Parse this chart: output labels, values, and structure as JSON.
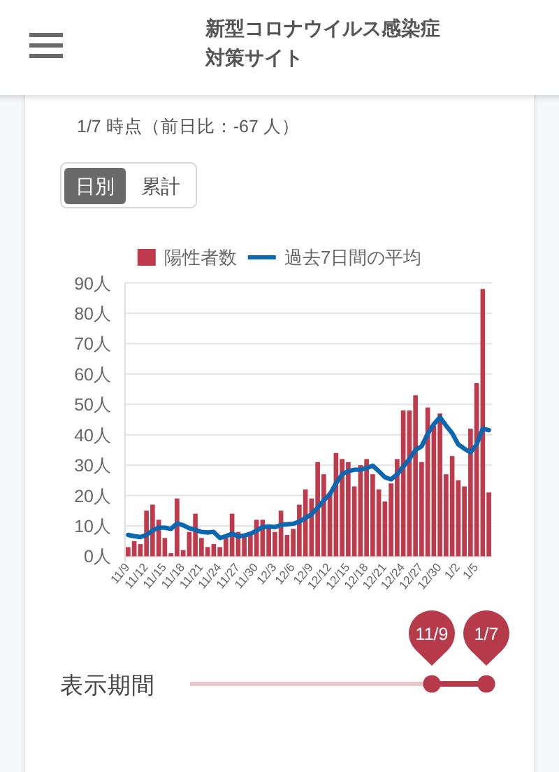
{
  "chart_data": {
    "type": "bar",
    "title": "新型コロナウイルス感染症対策サイト",
    "subtitle": "1/7 時点（前日比：-67 人）",
    "categories": [
      "11/9",
      null,
      null,
      "11/12",
      null,
      null,
      "11/15",
      null,
      null,
      "11/18",
      null,
      null,
      "11/21",
      null,
      null,
      "11/24",
      null,
      null,
      "11/27",
      null,
      null,
      "11/30",
      null,
      null,
      "12/3",
      null,
      null,
      "12/6",
      null,
      null,
      "12/9",
      null,
      null,
      "12/12",
      null,
      null,
      "12/15",
      null,
      null,
      "12/18",
      null,
      null,
      "12/21",
      null,
      null,
      "12/24",
      null,
      null,
      "12/27",
      null,
      null,
      "12/30",
      null,
      null,
      "1/2",
      null,
      null,
      "1/5",
      null,
      null
    ],
    "series": [
      {
        "name": "陽性者数",
        "color": "#bf3a4a",
        "values": [
          3,
          5,
          4,
          15,
          17,
          12,
          6,
          1,
          19,
          2,
          8,
          14,
          6,
          3,
          4,
          3,
          6,
          14,
          8,
          7,
          8,
          12,
          12,
          10,
          8,
          15,
          7,
          9,
          17,
          22,
          19,
          31,
          27,
          21,
          34,
          32,
          31,
          23,
          30,
          32,
          27,
          22,
          18,
          24,
          32,
          48,
          48,
          53,
          31,
          49,
          43,
          47,
          27,
          33,
          25,
          23,
          42,
          57,
          88,
          21
        ]
      },
      {
        "name": "過去7日間の平均",
        "type": "line",
        "color": "#0b67b0",
        "values": [
          7,
          6.6,
          6.3,
          7,
          8.5,
          9.4,
          9.4,
          9,
          10.8,
          10.2,
          9.2,
          8.7,
          8,
          7.8,
          8,
          6,
          6.6,
          7.4,
          6.5,
          6.8,
          7.4,
          8.4,
          9.6,
          9.8,
          9.6,
          10.3,
          10.5,
          10.7,
          11.4,
          12.6,
          13.8,
          16,
          18.4,
          20.4,
          24,
          27,
          28,
          28.5,
          28.5,
          29,
          29.8,
          28,
          26,
          25.3,
          27,
          29.5,
          32,
          35,
          36.2,
          40.3,
          43.5,
          45.8,
          43,
          40.5,
          36.8,
          35.4,
          34.2,
          36.8,
          42,
          41.5
        ]
      }
    ],
    "ylim": [
      0,
      90
    ],
    "yticks": [
      {
        "value": 0,
        "label": "0人"
      },
      {
        "value": 10,
        "label": "10人"
      },
      {
        "value": 20,
        "label": "20人"
      },
      {
        "value": 30,
        "label": "30人"
      },
      {
        "value": 40,
        "label": "40人"
      },
      {
        "value": 50,
        "label": "50人"
      },
      {
        "value": 60,
        "label": "60人"
      },
      {
        "value": 70,
        "label": "70人"
      },
      {
        "value": 80,
        "label": "80人"
      },
      {
        "value": 90,
        "label": "90人"
      }
    ],
    "grid": "y",
    "legend": "top",
    "line_style": "solid",
    "annotations": [
      "日別",
      "累計",
      "表示期間",
      "11/9",
      "1/7"
    ]
  }
}
